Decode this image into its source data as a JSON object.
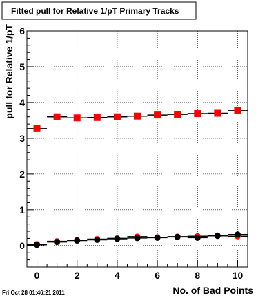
{
  "chart_data": {
    "type": "scatter",
    "title": "Fitted pull for Relative 1/pT Primary Tracks",
    "xlabel": "No. of Bad Points",
    "ylabel": "pull for Relative 1/pT",
    "xlim": [
      -0.5,
      10.5
    ],
    "ylim": [
      -0.6,
      6.0
    ],
    "x_ticks": [
      0,
      2,
      4,
      6,
      8,
      10
    ],
    "y_ticks": [
      0,
      1,
      2,
      3,
      4,
      5,
      6
    ],
    "grid": true,
    "legend": "none",
    "series": [
      {
        "marker": "square",
        "color": "#ff0000",
        "x": [
          0,
          1,
          2,
          3,
          4,
          5,
          6,
          7,
          8,
          9,
          10
        ],
        "y": [
          3.27,
          3.6,
          3.57,
          3.58,
          3.6,
          3.62,
          3.65,
          3.67,
          3.69,
          3.7,
          3.77
        ]
      },
      {
        "marker": "circle",
        "color": "#ff0000",
        "x": [
          0,
          1,
          2,
          3,
          4,
          5,
          6,
          7,
          8,
          9,
          10
        ],
        "y": [
          0.04,
          0.12,
          0.15,
          0.18,
          0.2,
          0.25,
          0.23,
          0.25,
          0.26,
          0.28,
          0.26
        ]
      },
      {
        "marker": "circle",
        "color": "#000000",
        "x": [
          0,
          1,
          2,
          3,
          4,
          5,
          6,
          7,
          8,
          9,
          10
        ],
        "y": [
          0.02,
          0.1,
          0.14,
          0.16,
          0.19,
          0.21,
          0.22,
          0.24,
          0.22,
          0.27,
          0.31
        ]
      }
    ]
  },
  "timestamp": "Fri Oct 28 01:46:21 2011"
}
